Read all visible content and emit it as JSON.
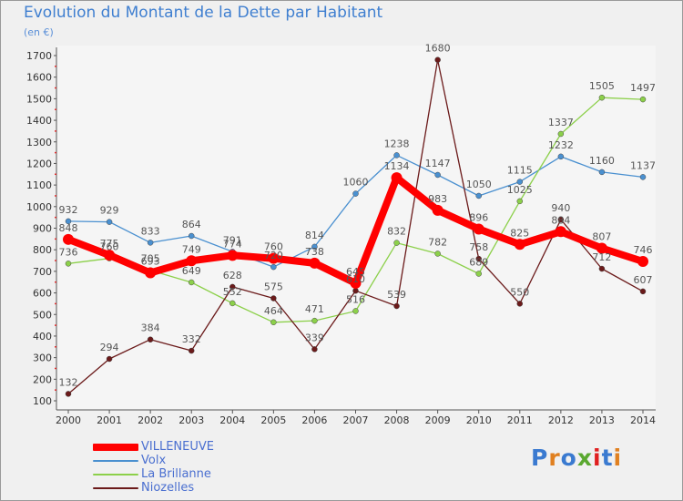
{
  "title": "Evolution du Montant de la Dette par Habitant",
  "unit": "(en €)",
  "logo": {
    "text": "Proxiti",
    "colors": [
      "#3a7ad0",
      "#e08020",
      "#3a7ad0",
      "#5aa830",
      "#e02020",
      "#3a7ad0",
      "#e08020"
    ]
  },
  "chart_data": {
    "type": "line",
    "title": "Evolution du Montant de la Dette par Habitant",
    "ylabel": "(en €)",
    "xlabel": "",
    "x": [
      "2000",
      "2001",
      "2002",
      "2003",
      "2004",
      "2005",
      "2006",
      "2007",
      "2008",
      "2009",
      "2010",
      "2011",
      "2012",
      "2013",
      "2014"
    ],
    "ylim": [
      100,
      1700
    ],
    "yticks": [
      100,
      200,
      300,
      400,
      500,
      600,
      700,
      800,
      900,
      1000,
      1100,
      1200,
      1300,
      1400,
      1500,
      1600,
      1700
    ],
    "grid": false,
    "legend": "bottom-left",
    "series": [
      {
        "name": "VILLENEUVE",
        "color": "#ff0000",
        "emphasis": true,
        "values": [
          848,
          775,
          693,
          749,
          774,
          760,
          738,
          645,
          1134,
          983,
          896,
          825,
          884,
          807,
          746
        ]
      },
      {
        "name": "Volx",
        "color": "#4a90d0",
        "values": [
          932,
          929,
          833,
          864,
          791,
          720,
          814,
          1060,
          1238,
          1147,
          1050,
          1115,
          1232,
          1160,
          1137
        ]
      },
      {
        "name": "La Brillanne",
        "color": "#8cd04a",
        "values": [
          736,
          760,
          705,
          649,
          552,
          464,
          471,
          516,
          832,
          782,
          689,
          1025,
          1337,
          1505,
          1497
        ]
      },
      {
        "name": "Niozelles",
        "color": "#6b1a1a",
        "values": [
          132,
          294,
          384,
          332,
          628,
          575,
          339,
          610,
          539,
          1680,
          758,
          550,
          940,
          712,
          607
        ]
      }
    ],
    "labels": {
      "VILLENEUVE": [
        "848",
        "775",
        "693",
        "749",
        "774",
        "760",
        "738",
        "645",
        "1134",
        "983",
        "896",
        "825",
        "884",
        "807",
        "746"
      ],
      "Volx": [
        "932",
        "929",
        "833",
        "864",
        "791",
        "720",
        "814",
        "1060",
        "1238",
        "1147",
        "1050",
        "1115",
        "1232",
        "1160",
        "1137"
      ],
      "La Brillanne": [
        "736",
        "760",
        "705",
        "649",
        "552",
        "464",
        "471",
        "516",
        "832",
        "782",
        "689",
        "1025",
        "1337",
        "1505",
        "1497"
      ],
      "Niozelles": [
        "132",
        "294",
        "384",
        "332",
        "628",
        "575",
        "339",
        "610",
        "539",
        "1680",
        "758",
        "550",
        "940",
        "712",
        "607"
      ]
    }
  }
}
